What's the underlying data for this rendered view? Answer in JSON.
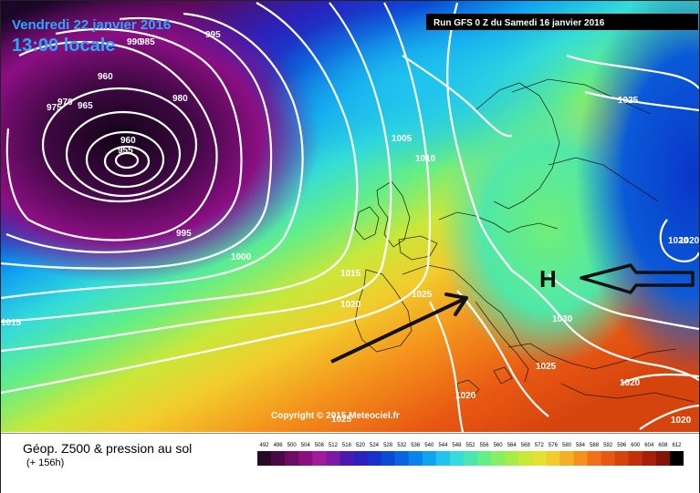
{
  "map": {
    "date_line": "Vendredi 22 janvier 2016",
    "time_line": "13:00 locale",
    "run_info": "Run GFS 0 Z du Samedi 16 janvier 2016",
    "copyright": "Copyright © 2015 Meteociel.fr",
    "high_marker": "H",
    "isobar_labels": [
      "990",
      "985",
      "995",
      "960",
      "975",
      "970",
      "965",
      "980",
      "960",
      "955",
      "995",
      "1000",
      "1005",
      "1010",
      "1015",
      "1020",
      "1025",
      "1025",
      "1030",
      "1025",
      "1020",
      "1020",
      "1020",
      "1015",
      "1025",
      "1020",
      "1020"
    ]
  },
  "legend": {
    "title": "Géop. Z500 & pression au sol",
    "subtitle": "(+ 156h)",
    "ticks": [
      "492",
      "496",
      "500",
      "504",
      "508",
      "512",
      "516",
      "520",
      "524",
      "528",
      "532",
      "536",
      "540",
      "544",
      "548",
      "552",
      "556",
      "560",
      "564",
      "568",
      "572",
      "576",
      "580",
      "584",
      "588",
      "592",
      "596",
      "600",
      "604",
      "608",
      "612"
    ],
    "colors": [
      "#2a0a26",
      "#4b0a45",
      "#6e0b64",
      "#8a0f82",
      "#a21a9a",
      "#7a1aa6",
      "#4a1ab0",
      "#2a22bc",
      "#1632c8",
      "#0a4ad6",
      "#0a64e2",
      "#0a84ec",
      "#10a4f0",
      "#20c4ee",
      "#34dcd8",
      "#4ae8b0",
      "#64ee86",
      "#86f064",
      "#a8ec4a",
      "#c8e83a",
      "#e4e034",
      "#f2cc2c",
      "#f4b024",
      "#f4921c",
      "#f07216",
      "#e85812",
      "#d6440e",
      "#c2300a",
      "#a62008",
      "#861406",
      "#000000"
    ]
  }
}
